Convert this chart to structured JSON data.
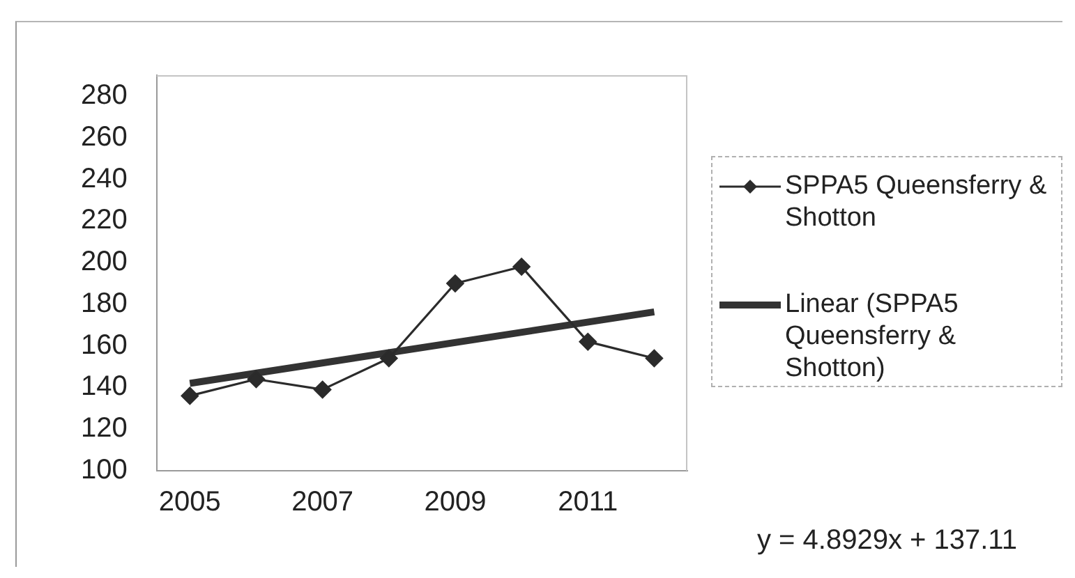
{
  "chart_data": {
    "type": "line",
    "x": [
      2005,
      2006,
      2007,
      2008,
      2009,
      2010,
      2011,
      2012
    ],
    "xlim": [
      2004.5,
      2012.5
    ],
    "xticks": [
      2005,
      2007,
      2009,
      2011
    ],
    "ylim": [
      100,
      290
    ],
    "yticks": [
      100,
      120,
      140,
      160,
      180,
      200,
      220,
      240,
      260,
      280
    ],
    "grid": false,
    "legend": "right",
    "marker": "diamond",
    "series": [
      {
        "name": "SPPA5 Queensferry & Shotton",
        "color": "#2b2b2b",
        "values": [
          136,
          144,
          139,
          154,
          190,
          198,
          162,
          154
        ]
      },
      {
        "name": "Linear (SPPA5 Queensferry & Shotton)",
        "type": "line",
        "x": [
          2005,
          2012
        ],
        "color": "#333333",
        "marker": "none",
        "values": [
          142.0,
          176.3
        ]
      }
    ],
    "annotations": [
      "y = 4.8929x + 137.11"
    ]
  }
}
